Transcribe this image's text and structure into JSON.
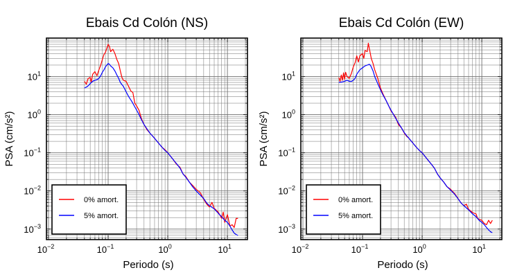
{
  "colors": {
    "series_0": "#ff0000",
    "series_5": "#0000ff",
    "frame": "#000000",
    "grid": "#6f6f6f"
  },
  "chart_data": [
    {
      "type": "line",
      "title": "Ebais Cd Colón (NS)",
      "xlabel": "Periodo (s)",
      "ylabel": "PSA (cm/s²)",
      "xscale": "log",
      "yscale": "log",
      "xlim": [
        0.01,
        20
      ],
      "ylim": [
        0.0006,
        90
      ],
      "grid": true,
      "legend_position": "bottom-left",
      "x_ticks": [
        {
          "base": "10",
          "exp": "−2"
        },
        {
          "base": "10",
          "exp": "−1"
        },
        {
          "base": "10",
          "exp": "0"
        },
        {
          "base": "10",
          "exp": "1"
        }
      ],
      "y_ticks": [
        {
          "base": "10",
          "exp": "−3"
        },
        {
          "base": "10",
          "exp": "−2"
        },
        {
          "base": "10",
          "exp": "−1"
        },
        {
          "base": "10",
          "exp": "0"
        },
        {
          "base": "10",
          "exp": "1"
        }
      ],
      "series": [
        {
          "name": "0% amort.",
          "color": "#ff0000",
          "points": [
            [
              0.04,
              7.5
            ],
            [
              0.043,
              6.3
            ],
            [
              0.046,
              8.8
            ],
            [
              0.05,
              9.5
            ],
            [
              0.052,
              7.2
            ],
            [
              0.055,
              11.5
            ],
            [
              0.06,
              13.5
            ],
            [
              0.065,
              10.5
            ],
            [
              0.07,
              15
            ],
            [
              0.075,
              20
            ],
            [
              0.08,
              28
            ],
            [
              0.085,
              38
            ],
            [
              0.09,
              43
            ],
            [
              0.095,
              55
            ],
            [
              0.1,
              70
            ],
            [
              0.105,
              62
            ],
            [
              0.11,
              45
            ],
            [
              0.12,
              52
            ],
            [
              0.13,
              40
            ],
            [
              0.14,
              28
            ],
            [
              0.15,
              22
            ],
            [
              0.16,
              14
            ],
            [
              0.17,
              9.5
            ],
            [
              0.18,
              8
            ],
            [
              0.2,
              7.5
            ],
            [
              0.22,
              5.5
            ],
            [
              0.24,
              4.2
            ],
            [
              0.26,
              3.8
            ],
            [
              0.28,
              2
            ],
            [
              0.3,
              1.7
            ],
            [
              0.33,
              1.3
            ],
            [
              0.36,
              0.8
            ],
            [
              0.4,
              0.55
            ],
            [
              0.45,
              0.4
            ],
            [
              0.5,
              0.33
            ],
            [
              0.55,
              0.28
            ],
            [
              0.6,
              0.24
            ],
            [
              0.7,
              0.18
            ],
            [
              0.8,
              0.14
            ],
            [
              0.9,
              0.12
            ],
            [
              1,
              0.1
            ],
            [
              1.2,
              0.07
            ],
            [
              1.4,
              0.05
            ],
            [
              1.6,
              0.042
            ],
            [
              1.8,
              0.028
            ],
            [
              2,
              0.024
            ],
            [
              2.3,
              0.017
            ],
            [
              2.6,
              0.014
            ],
            [
              3,
              0.011
            ],
            [
              3.5,
              0.009
            ],
            [
              4,
              0.006
            ],
            [
              4.5,
              0.0045
            ],
            [
              5,
              0.0038
            ],
            [
              5.5,
              0.005
            ],
            [
              6,
              0.0035
            ],
            [
              7,
              0.0028
            ],
            [
              8,
              0.0019
            ],
            [
              8.5,
              0.0028
            ],
            [
              9,
              0.0015
            ],
            [
              10,
              0.0024
            ],
            [
              11,
              0.0012
            ],
            [
              12,
              0.0013
            ],
            [
              13,
              0.0011
            ],
            [
              14,
              0.0019
            ],
            [
              15,
              0.0019
            ]
          ]
        },
        {
          "name": "5% amort.",
          "color": "#0000ff",
          "points": [
            [
              0.04,
              5
            ],
            [
              0.045,
              5.5
            ],
            [
              0.05,
              6.5
            ],
            [
              0.055,
              7.5
            ],
            [
              0.06,
              8
            ],
            [
              0.065,
              8.3
            ],
            [
              0.07,
              9
            ],
            [
              0.075,
              10.5
            ],
            [
              0.08,
              13
            ],
            [
              0.085,
              15
            ],
            [
              0.09,
              18
            ],
            [
              0.1,
              22
            ],
            [
              0.105,
              21
            ],
            [
              0.11,
              19
            ],
            [
              0.12,
              17
            ],
            [
              0.13,
              14
            ],
            [
              0.14,
              11
            ],
            [
              0.15,
              9
            ],
            [
              0.16,
              7
            ],
            [
              0.18,
              5.5
            ],
            [
              0.2,
              4
            ],
            [
              0.22,
              3
            ],
            [
              0.25,
              2.2
            ],
            [
              0.28,
              1.6
            ],
            [
              0.32,
              1.1
            ],
            [
              0.36,
              0.75
            ],
            [
              0.4,
              0.55
            ],
            [
              0.45,
              0.42
            ],
            [
              0.5,
              0.33
            ],
            [
              0.55,
              0.28
            ],
            [
              0.6,
              0.24
            ],
            [
              0.7,
              0.18
            ],
            [
              0.8,
              0.14
            ],
            [
              0.9,
              0.115
            ],
            [
              1,
              0.1
            ],
            [
              1.2,
              0.07
            ],
            [
              1.4,
              0.052
            ],
            [
              1.6,
              0.04
            ],
            [
              1.8,
              0.028
            ],
            [
              2,
              0.023
            ],
            [
              2.3,
              0.017
            ],
            [
              2.6,
              0.013
            ],
            [
              3,
              0.01
            ],
            [
              3.5,
              0.0078
            ],
            [
              4,
              0.0063
            ],
            [
              4.5,
              0.0048
            ],
            [
              5,
              0.0041
            ],
            [
              6,
              0.0034
            ],
            [
              7,
              0.0026
            ],
            [
              8,
              0.0021
            ],
            [
              9,
              0.0017
            ],
            [
              10,
              0.0015
            ],
            [
              11,
              0.0012
            ],
            [
              12,
              0.00095
            ],
            [
              13,
              0.00078
            ],
            [
              14,
              0.00072
            ],
            [
              15,
              0.00068
            ]
          ]
        }
      ]
    },
    {
      "type": "line",
      "title": "Ebais Cd Colón (EW)",
      "xlabel": "Periodo (s)",
      "ylabel": "PSA (cm/s²)",
      "xscale": "log",
      "yscale": "log",
      "xlim": [
        0.01,
        20
      ],
      "ylim": [
        0.0006,
        90
      ],
      "grid": true,
      "legend_position": "bottom-left",
      "x_ticks": [
        {
          "base": "10",
          "exp": "−2"
        },
        {
          "base": "10",
          "exp": "−1"
        },
        {
          "base": "10",
          "exp": "0"
        },
        {
          "base": "10",
          "exp": "1"
        }
      ],
      "y_ticks": [
        {
          "base": "10",
          "exp": "−3"
        },
        {
          "base": "10",
          "exp": "−2"
        },
        {
          "base": "10",
          "exp": "−1"
        },
        {
          "base": "10",
          "exp": "0"
        },
        {
          "base": "10",
          "exp": "1"
        }
      ],
      "series": [
        {
          "name": "0% amort.",
          "color": "#ff0000",
          "points": [
            [
              0.04,
              9.5
            ],
            [
              0.042,
              7.5
            ],
            [
              0.044,
              11
            ],
            [
              0.046,
              8
            ],
            [
              0.048,
              12.5
            ],
            [
              0.05,
              8.5
            ],
            [
              0.052,
              13
            ],
            [
              0.055,
              10
            ],
            [
              0.06,
              9
            ],
            [
              0.065,
              12
            ],
            [
              0.07,
              18
            ],
            [
              0.075,
              23
            ],
            [
              0.08,
              35
            ],
            [
              0.085,
              24
            ],
            [
              0.09,
              35
            ],
            [
              0.1,
              40
            ],
            [
              0.105,
              30
            ],
            [
              0.11,
              48
            ],
            [
              0.12,
              45
            ],
            [
              0.125,
              75
            ],
            [
              0.13,
              55
            ],
            [
              0.14,
              30
            ],
            [
              0.15,
              22
            ],
            [
              0.16,
              15
            ],
            [
              0.18,
              9
            ],
            [
              0.2,
              5
            ],
            [
              0.22,
              3.5
            ],
            [
              0.25,
              2.3
            ],
            [
              0.28,
              1.6
            ],
            [
              0.3,
              1.25
            ],
            [
              0.32,
              1.1
            ],
            [
              0.36,
              0.85
            ],
            [
              0.4,
              0.55
            ],
            [
              0.45,
              0.45
            ],
            [
              0.5,
              0.33
            ],
            [
              0.55,
              0.27
            ],
            [
              0.6,
              0.24
            ],
            [
              0.7,
              0.18
            ],
            [
              0.8,
              0.14
            ],
            [
              0.9,
              0.115
            ],
            [
              1,
              0.1
            ],
            [
              1.2,
              0.07
            ],
            [
              1.4,
              0.052
            ],
            [
              1.6,
              0.04
            ],
            [
              1.8,
              0.028
            ],
            [
              2,
              0.022
            ],
            [
              2.3,
              0.017
            ],
            [
              2.6,
              0.013
            ],
            [
              3,
              0.011
            ],
            [
              3.5,
              0.0085
            ],
            [
              4,
              0.0063
            ],
            [
              4.5,
              0.0048
            ],
            [
              5,
              0.0041
            ],
            [
              5.5,
              0.0045
            ],
            [
              6,
              0.0033
            ],
            [
              7,
              0.0027
            ],
            [
              8,
              0.0025
            ],
            [
              8.5,
              0.0019
            ],
            [
              9,
              0.0018
            ],
            [
              10,
              0.0017
            ],
            [
              11,
              0.0014
            ],
            [
              12,
              0.0013
            ],
            [
              13,
              0.0017
            ],
            [
              14,
              0.0014
            ],
            [
              15,
              0.0017
            ]
          ]
        },
        {
          "name": "5% amort.",
          "color": "#0000ff",
          "points": [
            [
              0.04,
              7
            ],
            [
              0.045,
              7.2
            ],
            [
              0.05,
              7.5
            ],
            [
              0.055,
              8
            ],
            [
              0.06,
              7.5
            ],
            [
              0.065,
              7.4
            ],
            [
              0.07,
              8
            ],
            [
              0.075,
              9
            ],
            [
              0.08,
              11.5
            ],
            [
              0.09,
              15
            ],
            [
              0.1,
              17
            ],
            [
              0.11,
              19
            ],
            [
              0.12,
              20
            ],
            [
              0.13,
              21
            ],
            [
              0.135,
              20
            ],
            [
              0.14,
              18
            ],
            [
              0.15,
              14
            ],
            [
              0.16,
              10
            ],
            [
              0.18,
              6.5
            ],
            [
              0.2,
              4.5
            ],
            [
              0.22,
              3.3
            ],
            [
              0.25,
              2.3
            ],
            [
              0.28,
              1.6
            ],
            [
              0.32,
              1.1
            ],
            [
              0.36,
              0.8
            ],
            [
              0.4,
              0.6
            ],
            [
              0.45,
              0.45
            ],
            [
              0.5,
              0.34
            ],
            [
              0.55,
              0.28
            ],
            [
              0.6,
              0.24
            ],
            [
              0.7,
              0.18
            ],
            [
              0.8,
              0.14
            ],
            [
              0.9,
              0.115
            ],
            [
              1,
              0.1
            ],
            [
              1.2,
              0.07
            ],
            [
              1.4,
              0.052
            ],
            [
              1.6,
              0.04
            ],
            [
              1.8,
              0.028
            ],
            [
              2,
              0.022
            ],
            [
              2.3,
              0.017
            ],
            [
              2.6,
              0.013
            ],
            [
              3,
              0.0105
            ],
            [
              3.5,
              0.0082
            ],
            [
              4,
              0.0062
            ],
            [
              4.5,
              0.0048
            ],
            [
              5,
              0.0041
            ],
            [
              6,
              0.0032
            ],
            [
              7,
              0.0025
            ],
            [
              8,
              0.0021
            ],
            [
              9,
              0.0017
            ],
            [
              10,
              0.0015
            ],
            [
              11,
              0.0013
            ],
            [
              12,
              0.0011
            ],
            [
              13,
              0.00095
            ],
            [
              14,
              0.00085
            ],
            [
              15,
              0.0008
            ]
          ]
        }
      ]
    }
  ]
}
